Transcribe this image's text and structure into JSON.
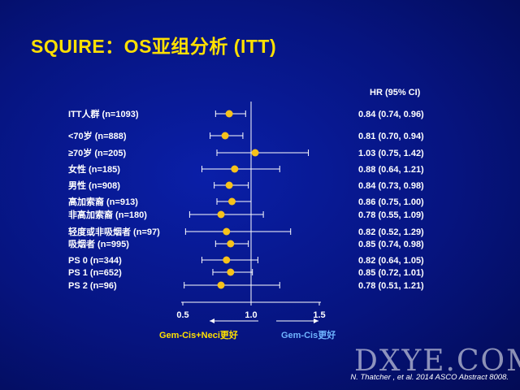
{
  "title": "SQUIRE：OS亚组分析   (ITT)",
  "hr_header": "HR (95% CI)",
  "chart_data": {
    "type": "forest",
    "reference_line": 1.0,
    "xlim": [
      0.5,
      1.5
    ],
    "xticks": [
      0.5,
      1.0,
      1.5
    ],
    "tick_labels": [
      "0.5",
      "1.0",
      "1.5"
    ],
    "rows": [
      {
        "label": "ITT人群 (n=1093)",
        "hr": 0.84,
        "lo": 0.74,
        "hi": 0.96,
        "text": "0.84 (0.74, 0.96)"
      },
      {
        "label": "<70岁 (n=888)",
        "hr": 0.81,
        "lo": 0.7,
        "hi": 0.94,
        "text": "0.81 (0.70, 0.94)"
      },
      {
        "label": "≥70岁 (n=205)",
        "hr": 1.03,
        "lo": 0.75,
        "hi": 1.42,
        "text": "1.03 (0.75, 1.42)"
      },
      {
        "label": "女性 (n=185)",
        "hr": 0.88,
        "lo": 0.64,
        "hi": 1.21,
        "text": "0.88 (0.64, 1.21)"
      },
      {
        "label": "男性 (n=908)",
        "hr": 0.84,
        "lo": 0.73,
        "hi": 0.98,
        "text": "0.84 (0.73, 0.98)"
      },
      {
        "label": "高加索裔 (n=913)",
        "hr": 0.86,
        "lo": 0.75,
        "hi": 1.0,
        "text": "0.86 (0.75, 1.00)"
      },
      {
        "label": "非高加索裔 (n=180)",
        "hr": 0.78,
        "lo": 0.55,
        "hi": 1.09,
        "text": "0.78 (0.55, 1.09)"
      },
      {
        "label": "轻度或非吸烟者 (n=97)",
        "hr": 0.82,
        "lo": 0.52,
        "hi": 1.29,
        "text": "0.82 (0.52, 1.29)"
      },
      {
        "label": "吸烟者 (n=995)",
        "hr": 0.85,
        "lo": 0.74,
        "hi": 0.98,
        "text": "0.85 (0.74, 0.98)"
      },
      {
        "label": "PS 0 (n=344)",
        "hr": 0.82,
        "lo": 0.64,
        "hi": 1.05,
        "text": "0.82 (0.64, 1.05)"
      },
      {
        "label": "PS 1 (n=652)",
        "hr": 0.85,
        "lo": 0.72,
        "hi": 1.01,
        "text": "0.85 (0.72, 1.01)"
      },
      {
        "label": "PS 2 (n=96)",
        "hr": 0.78,
        "lo": 0.51,
        "hi": 1.21,
        "text": "0.78 (0.51, 1.21)"
      }
    ],
    "favours_left": "Gem-Cis+Neci更好",
    "favours_right": "Gem-Cis更好",
    "colors": {
      "point": "#f7c21a",
      "line": "#ffffff",
      "left_label": "#ffe000",
      "right_label": "#6fb4ff"
    }
  },
  "footer": "N. Thatcher , et al. 2014  ASCO Abstract 8008.",
  "watermark": "DXYE.COM"
}
